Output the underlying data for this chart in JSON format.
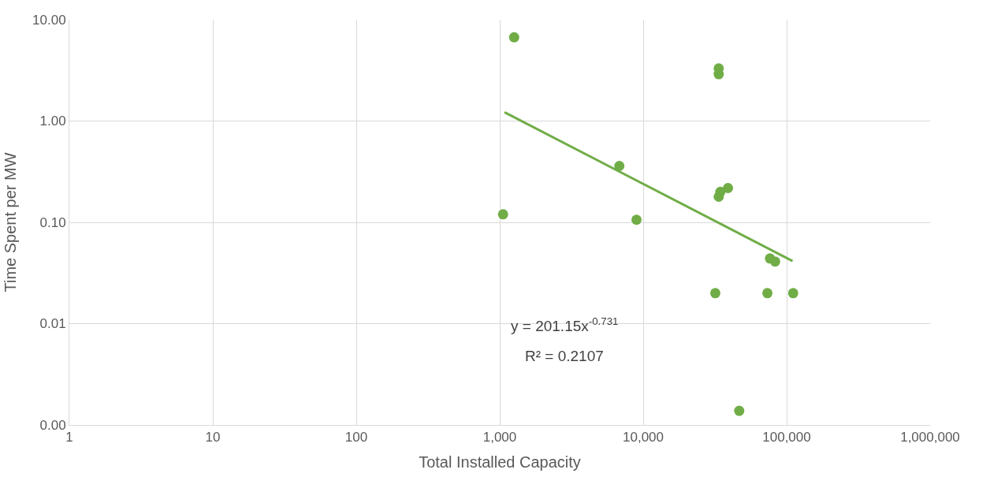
{
  "chart_data": {
    "type": "scatter",
    "xlabel": "Total Installed Capacity",
    "ylabel": "Time Spent per MW",
    "log": "xy",
    "grid": true,
    "legend": false,
    "marker": "circle",
    "xlim": [
      1,
      1000000
    ],
    "xticks": [
      1,
      10,
      100,
      {
        "value": 1000,
        "label": "1,000"
      },
      {
        "value": 10000,
        "label": "10,000"
      },
      {
        "value": 100000,
        "label": "100,000"
      },
      {
        "value": 1000000,
        "label": "1,000,000"
      }
    ],
    "ylim": [
      0.001,
      10
    ],
    "yticks": [
      {
        "value": 0.001,
        "label": "0.00"
      },
      {
        "value": 0.01,
        "label": "0.01"
      },
      {
        "value": 0.1,
        "label": "0.10"
      },
      {
        "value": 1,
        "label": "1.00"
      },
      {
        "value": 10,
        "label": "10.00"
      }
    ],
    "series": [
      {
        "color": "#70ad47",
        "x": [
          1260,
          1055,
          6820,
          8980,
          33600,
          33600,
          33600,
          34500,
          39000,
          31800,
          46700,
          73400,
          111000,
          76500,
          83100
        ],
        "values": [
          6.7,
          0.12,
          0.36,
          0.106,
          3.3,
          2.9,
          0.179,
          0.2,
          0.218,
          0.02,
          0.00138,
          0.02,
          0.02,
          0.044,
          0.041
        ]
      },
      {
        "type": "line",
        "color": "#70ad47",
        "marker": "none",
        "x": [
          1080,
          110000
        ],
        "values": [
          1.22,
          0.0415
        ]
      }
    ],
    "annotations": [
      "y = 201.15x$^{-0.731}$",
      "R² = 0.2107"
    ]
  }
}
